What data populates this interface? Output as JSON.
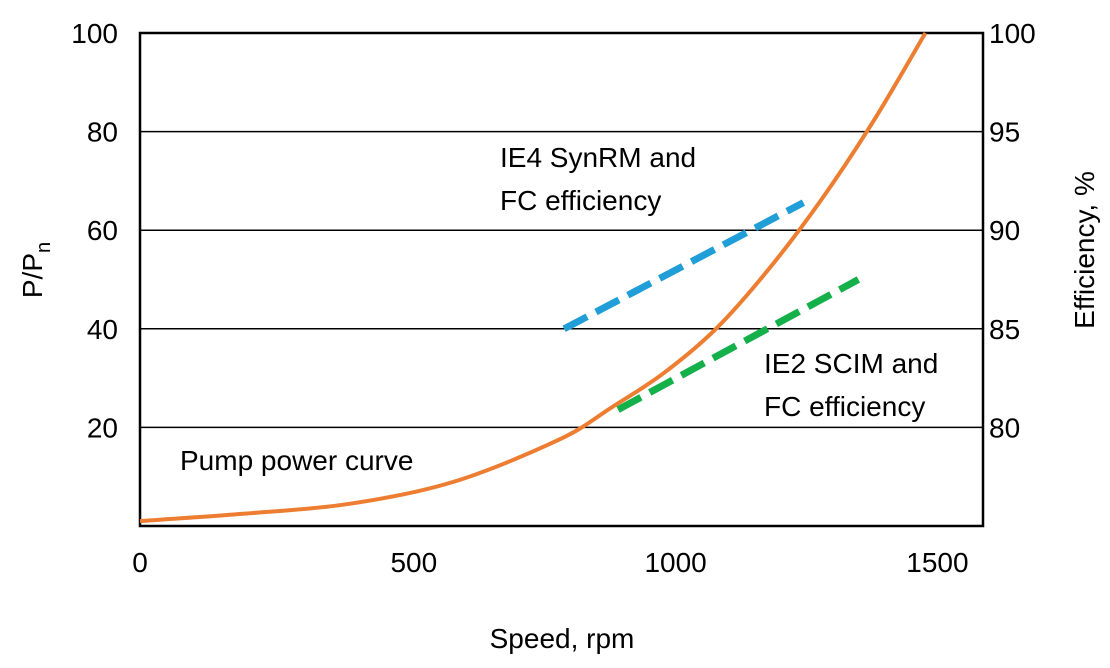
{
  "chart_data": {
    "type": "line",
    "title": "",
    "xlabel": "Speed, rpm",
    "ylabel_main": "P/P",
    "ylabel_sub": "n",
    "y2label": "Efficiency, %",
    "xlim": [
      0,
      1610
    ],
    "ylim": [
      0,
      100
    ],
    "y2lim": [
      75,
      100
    ],
    "grid": "horizontal",
    "x_ticks": [
      0,
      500,
      1000,
      1500
    ],
    "y_ticks": [
      20,
      40,
      60,
      80,
      100
    ],
    "y2_ticks": [
      80,
      85,
      90,
      95,
      100
    ],
    "series": [
      {
        "label": "Pump power curve",
        "axis": "left",
        "style": "solid",
        "color": "#ed7d31",
        "x": [
          0,
          200,
          400,
          600,
          800,
          900,
          1000,
          1100,
          1200,
          1300,
          1400,
          1500
        ],
        "y": [
          1,
          2.5,
          4.5,
          9,
          17.5,
          24,
          31,
          40,
          52,
          66,
          82,
          100
        ]
      },
      {
        "label": "IE4 SynRM and\nFC efficiency",
        "label_lines": [
          "IE4 SynRM and",
          "FC efficiency"
        ],
        "axis": "right",
        "style": "dashed",
        "color": "#1f9ed8",
        "x": [
          810,
          1267
        ],
        "y": [
          85,
          91.4
        ]
      },
      {
        "label": "IE2 SCIM and\nFC efficiency",
        "label_lines": [
          "IE2 SCIM and",
          "FC efficiency"
        ],
        "axis": "right",
        "style": "dashed",
        "color": "#14b04a",
        "x": [
          913,
          1372
        ],
        "y": [
          80.9,
          87.5
        ]
      }
    ]
  }
}
